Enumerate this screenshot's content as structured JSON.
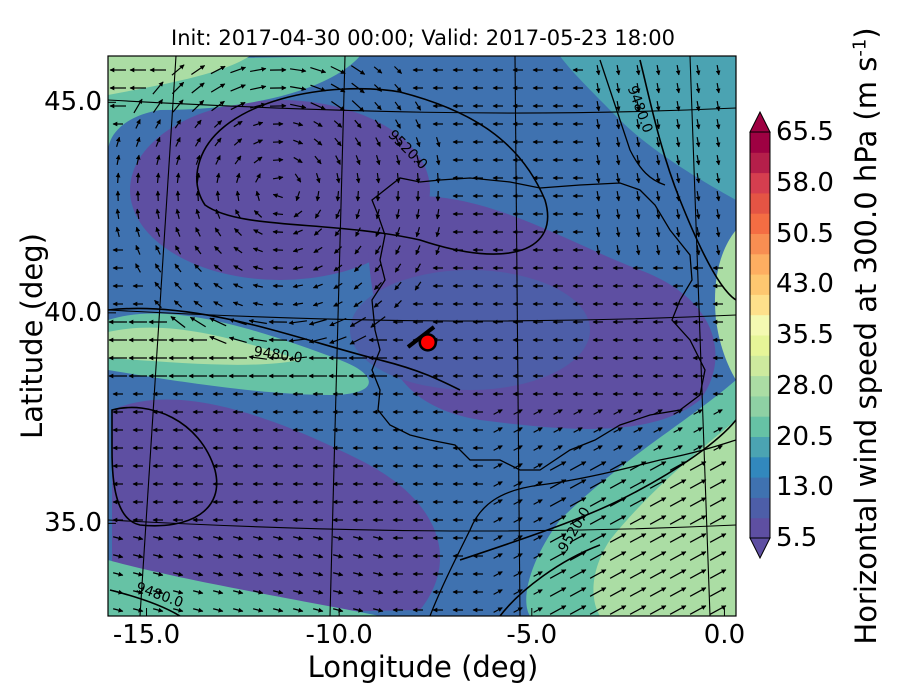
{
  "chart_data": {
    "type": "map-contourf-with-vectors",
    "title": "Init: 2017-04-30 00:00; Valid: 2017-05-23 18:00",
    "xlabel": "Longitude (deg)",
    "ylabel": "Latitude (deg)",
    "x_ticks": [
      "-15.0",
      "-10.0",
      "-5.0",
      "0.0"
    ],
    "y_ticks": [
      "45.0",
      "40.0",
      "35.0"
    ],
    "xlim": [
      -16.0,
      0.3
    ],
    "ylim": [
      32.8,
      46.1
    ],
    "colorbar": {
      "label": "Horizontal wind speed at 300.0 hPa (m s",
      "label_sup": "-1",
      "label_close": ")",
      "ticks": [
        "65.5",
        "58.0",
        "50.5",
        "43.0",
        "35.5",
        "28.0",
        "20.5",
        "13.0",
        "5.5"
      ],
      "range": [
        5.5,
        65.5
      ],
      "extend": "both",
      "colors": [
        "#5e4fa2",
        "#4d5ea8",
        "#3f72b0",
        "#3288bd",
        "#4ba3b2",
        "#66c2a5",
        "#8ed1a4",
        "#abdda4",
        "#cdea9e",
        "#e6f598",
        "#f4f9b1",
        "#fee08b",
        "#fdc770",
        "#fdae61",
        "#f88e52",
        "#f46d43",
        "#e45444",
        "#d53e4f",
        "#b51f4a",
        "#9e0142"
      ]
    },
    "contours": [
      {
        "label": "9520.0",
        "anchor": [
          -8.3,
          43.8
        ]
      },
      {
        "label": "9480.0",
        "anchor": [
          -2.3,
          44.8
        ]
      },
      {
        "label": "9480.0",
        "anchor": [
          -11.6,
          38.9
        ]
      },
      {
        "label": "9520.0",
        "anchor": [
          -3.8,
          34.8
        ]
      },
      {
        "label": "9480.0",
        "anchor": [
          -14.7,
          33.2
        ]
      }
    ],
    "marker": {
      "lon": -7.7,
      "lat": 39.3,
      "color": "#ff0000"
    }
  }
}
